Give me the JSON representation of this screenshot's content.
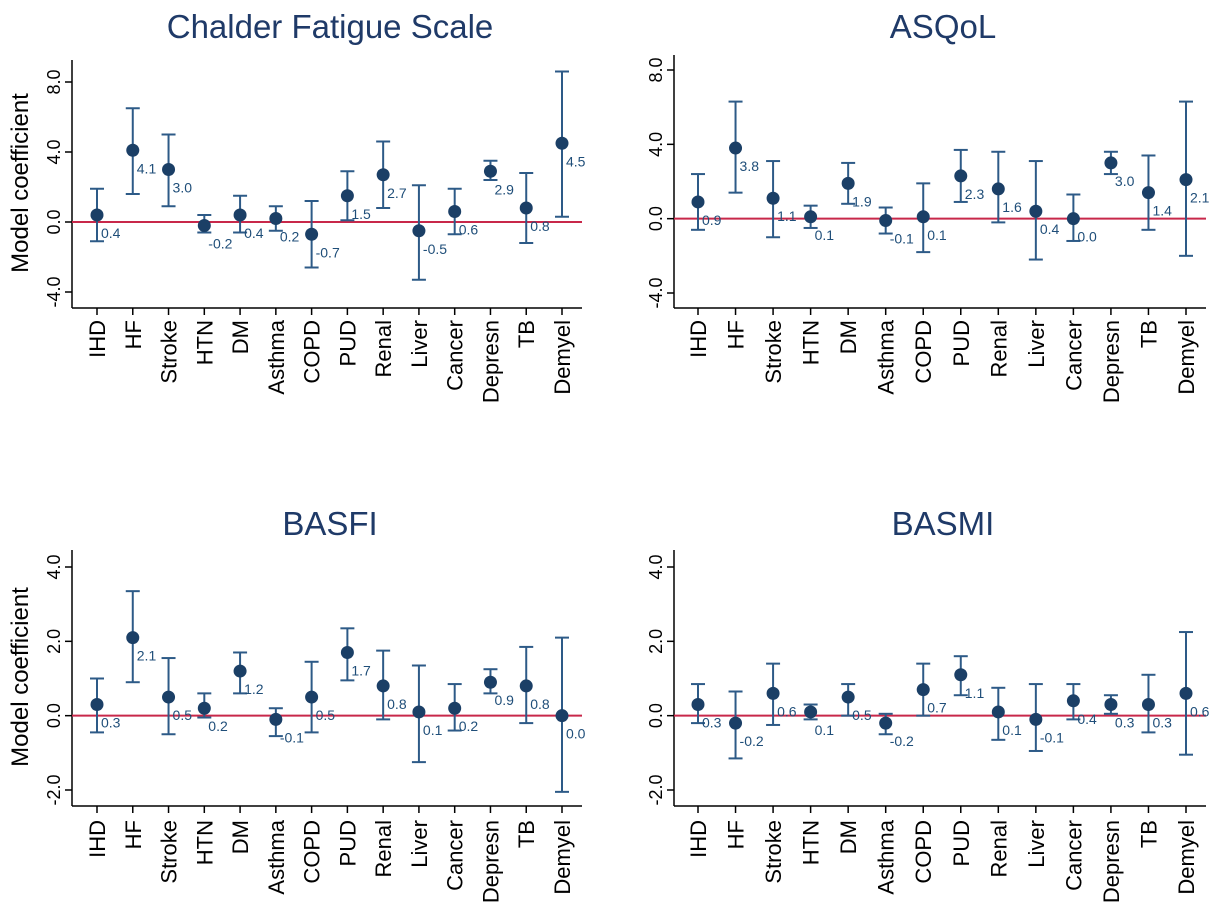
{
  "chart_data": [
    {
      "type": "scatter",
      "title": "Chalder Fatigue Scale",
      "ylabel": "Model coefficient",
      "xlabel": "",
      "ylim": [
        -5,
        9
      ],
      "yticks": [
        "8.0",
        "4.0",
        "0.0",
        "-4.0"
      ],
      "ytick_values": [
        8,
        4,
        0,
        -4
      ],
      "reference_line": 0,
      "categories": [
        "IHD",
        "HF",
        "Stroke",
        "HTN",
        "DM",
        "Asthma",
        "COPD",
        "PUD",
        "Renal",
        "Liver",
        "Cancer",
        "Depresn",
        "TB",
        "Demyel"
      ],
      "values": [
        0.4,
        4.1,
        3.0,
        -0.2,
        0.4,
        0.2,
        -0.7,
        1.5,
        2.7,
        -0.5,
        0.6,
        2.9,
        0.8,
        4.5
      ],
      "labels": [
        "0.4",
        "4.1",
        "3.0",
        "-0.2",
        "0.4",
        "0.2",
        "-0.7",
        "1.5",
        "2.7",
        "-0.5",
        "0.6",
        "2.9",
        "0.8",
        "4.5"
      ],
      "ci_low": [
        -1.1,
        1.6,
        0.9,
        -0.6,
        -0.6,
        -0.5,
        -2.6,
        0.1,
        0.8,
        -3.3,
        -0.7,
        2.4,
        -1.2,
        0.3
      ],
      "ci_high": [
        1.9,
        6.5,
        5.0,
        0.4,
        1.5,
        0.9,
        1.2,
        2.9,
        4.6,
        2.1,
        1.9,
        3.5,
        2.8,
        8.6
      ]
    },
    {
      "type": "scatter",
      "title": "ASQoL",
      "ylabel": "",
      "xlabel": "",
      "ylim": [
        -5,
        9
      ],
      "yticks": [
        "8.0",
        "4.0",
        "0.0",
        "-4.0"
      ],
      "ytick_values": [
        8,
        4,
        0,
        -4
      ],
      "reference_line": 0,
      "categories": [
        "IHD",
        "HF",
        "Stroke",
        "HTN",
        "DM",
        "Asthma",
        "COPD",
        "PUD",
        "Renal",
        "Liver",
        "Cancer",
        "Depresn",
        "TB",
        "Demyel"
      ],
      "values": [
        0.9,
        3.8,
        1.1,
        0.1,
        1.9,
        -0.1,
        0.1,
        2.3,
        1.6,
        0.4,
        0.0,
        3.0,
        1.4,
        2.1
      ],
      "labels": [
        "0.9",
        "3.8",
        "1.1",
        "0.1",
        "1.9",
        "-0.1",
        "0.1",
        "2.3",
        "1.6",
        "0.4",
        "0.0",
        "3.0",
        "1.4",
        "2.1"
      ],
      "ci_low": [
        -0.6,
        1.4,
        -1.0,
        -0.5,
        0.8,
        -0.8,
        -1.8,
        0.9,
        -0.2,
        -2.2,
        -1.2,
        2.4,
        -0.6,
        -2.0
      ],
      "ci_high": [
        2.4,
        6.3,
        3.1,
        0.7,
        3.0,
        0.6,
        1.9,
        3.7,
        3.6,
        3.1,
        1.3,
        3.6,
        3.4,
        6.3
      ]
    },
    {
      "type": "scatter",
      "title": "BASFI",
      "ylabel": "Model coefficient",
      "xlabel": "",
      "ylim": [
        -2.5,
        4.5
      ],
      "yticks": [
        "4.0",
        "2.0",
        "0.0",
        "-2.0"
      ],
      "ytick_values": [
        4,
        2,
        0,
        -2
      ],
      "reference_line": 0,
      "categories": [
        "IHD",
        "HF",
        "Stroke",
        "HTN",
        "DM",
        "Asthma",
        "COPD",
        "PUD",
        "Renal",
        "Liver",
        "Cancer",
        "Depresn",
        "TB",
        "Demyel"
      ],
      "values": [
        0.3,
        2.1,
        0.5,
        0.2,
        1.2,
        -0.1,
        0.5,
        1.7,
        0.8,
        0.1,
        0.2,
        0.9,
        0.8,
        0.0
      ],
      "labels": [
        "0.3",
        "2.1",
        "0.5",
        "0.2",
        "1.2",
        "-0.1",
        "0.5",
        "1.7",
        "0.8",
        "0.1",
        "0.2",
        "0.9",
        "0.8",
        "0.0"
      ],
      "ci_low": [
        -0.45,
        0.9,
        -0.5,
        -0.05,
        0.6,
        -0.55,
        -0.45,
        0.95,
        -0.1,
        -1.25,
        -0.4,
        0.6,
        -0.2,
        -2.05
      ],
      "ci_high": [
        1.0,
        3.35,
        1.55,
        0.6,
        1.7,
        0.2,
        1.45,
        2.35,
        1.75,
        1.35,
        0.85,
        1.25,
        1.85,
        2.1
      ]
    },
    {
      "type": "scatter",
      "title": "BASMI",
      "ylabel": "",
      "xlabel": "",
      "ylim": [
        -2.5,
        4.5
      ],
      "yticks": [
        "4.0",
        "2.0",
        "0.0",
        "-2.0"
      ],
      "ytick_values": [
        4,
        2,
        0,
        -2
      ],
      "reference_line": 0,
      "categories": [
        "IHD",
        "HF",
        "Stroke",
        "HTN",
        "DM",
        "Asthma",
        "COPD",
        "PUD",
        "Renal",
        "Liver",
        "Cancer",
        "Depresn",
        "TB",
        "Demyel"
      ],
      "values": [
        0.3,
        -0.2,
        0.6,
        0.1,
        0.5,
        -0.2,
        0.7,
        1.1,
        0.1,
        -0.1,
        0.4,
        0.3,
        0.3,
        0.6
      ],
      "labels": [
        "0.3",
        "-0.2",
        "0.6",
        "0.1",
        "0.5",
        "-0.2",
        "0.7",
        "1.1",
        "0.1",
        "-0.1",
        "0.4",
        "0.3",
        "0.3",
        "0.6"
      ],
      "ci_low": [
        -0.2,
        -1.15,
        -0.25,
        -0.1,
        0.0,
        -0.5,
        0.0,
        0.55,
        -0.65,
        -0.95,
        -0.1,
        0.05,
        -0.45,
        -1.05
      ],
      "ci_high": [
        0.85,
        0.65,
        1.4,
        0.3,
        0.85,
        0.05,
        1.4,
        1.6,
        0.75,
        0.85,
        0.85,
        0.55,
        1.1,
        2.25
      ]
    }
  ],
  "colors": {
    "marker": "#1b3f66",
    "error_bar": "#2d5a87",
    "data_label": "#1f4e79",
    "reference_line": "#c8284a",
    "title": "#1f3a68",
    "axis": "#000000"
  }
}
